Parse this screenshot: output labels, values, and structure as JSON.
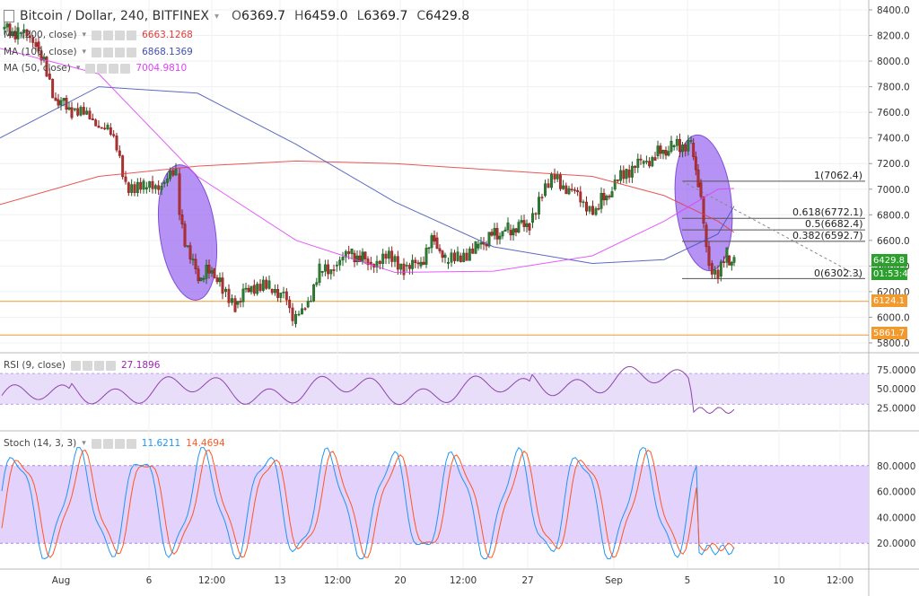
{
  "header": {
    "symbol": "Bitcoin / Dollar, 240, BITFINEX",
    "open_k": "O",
    "open": "6369.7",
    "high_k": "H",
    "high": "6459.0",
    "low_k": "L",
    "low": "6369.7",
    "close_k": "C",
    "close": "6429.8"
  },
  "indicators": {
    "ma200": {
      "label": "MA (200, close)",
      "value": "6663.1268",
      "color": "#e53935"
    },
    "ma100": {
      "label": "MA (100, close)",
      "value": "6868.1369",
      "color": "#3f51b5"
    },
    "ma50": {
      "label": "MA (50, close)",
      "value": "7004.9810",
      "color": "#e040fb"
    },
    "rsi": {
      "label": "RSI (9, close)",
      "value": "27.1896",
      "color": "#9c27b0"
    },
    "stoch": {
      "label": "Stoch (14, 3, 3)",
      "k": "11.6211",
      "d": "14.4694",
      "k_color": "#2196f3",
      "d_color": "#ff5722"
    }
  },
  "price_axis": {
    "ticks": [
      "8400.0",
      "8200.0",
      "8000.0",
      "7800.0",
      "7600.0",
      "7400.0",
      "7200.0",
      "7000.0",
      "6800.0",
      "6600.0",
      "6400.0",
      "6200.0",
      "6000.0",
      "5800.0"
    ],
    "last_price": "6429.8",
    "countdown": "01:53:47",
    "support1": "6124.1",
    "support2": "5861.7"
  },
  "rsi_axis": {
    "ticks": [
      "75.0000",
      "50.0000",
      "25.0000"
    ]
  },
  "stoch_axis": {
    "ticks": [
      "80.0000",
      "60.0000",
      "40.0000",
      "20.0000"
    ]
  },
  "time_axis": {
    "ticks": [
      "Aug",
      "6",
      "12:00",
      "13",
      "12:00",
      "20",
      "12:00",
      "27",
      "Sep",
      "5",
      "10",
      "12:00"
    ]
  },
  "fib": {
    "l1": "1(7062.4)",
    "l0618": "0.618(6772.1)",
    "l05": "0.5(6682.4)",
    "l0382": "0.382(6592.7)",
    "l0": "0(6302.3)"
  },
  "colors": {
    "up": "#1b5e20",
    "down": "#8b1e1e",
    "support": "#f29a2e",
    "highlight": "#9c6ef0",
    "rsi_band": "#e9defa",
    "stoch_band": "#e3d2fb"
  },
  "chart_data": {
    "type": "line",
    "title": "Bitcoin / Dollar, 240, BITFINEX",
    "ylim": [
      5800,
      8400
    ],
    "series": [
      {
        "name": "MA (200, close)",
        "values": [
          6880,
          7100,
          7180,
          7220,
          7200,
          7150,
          7100,
          6950,
          6750,
          6663
        ]
      },
      {
        "name": "MA (100, close)",
        "values": [
          7400,
          7800,
          7750,
          7350,
          6900,
          6550,
          6420,
          6450,
          6650,
          6868
        ]
      },
      {
        "name": "MA (50, close)",
        "values": [
          8100,
          7900,
          7100,
          6600,
          6350,
          6360,
          6480,
          6750,
          7000,
          7005
        ]
      }
    ],
    "support_levels": [
      6124.1,
      5861.7
    ],
    "fib_levels": [
      7062.4,
      6772.1,
      6682.4,
      6592.7,
      6302.3
    ]
  }
}
